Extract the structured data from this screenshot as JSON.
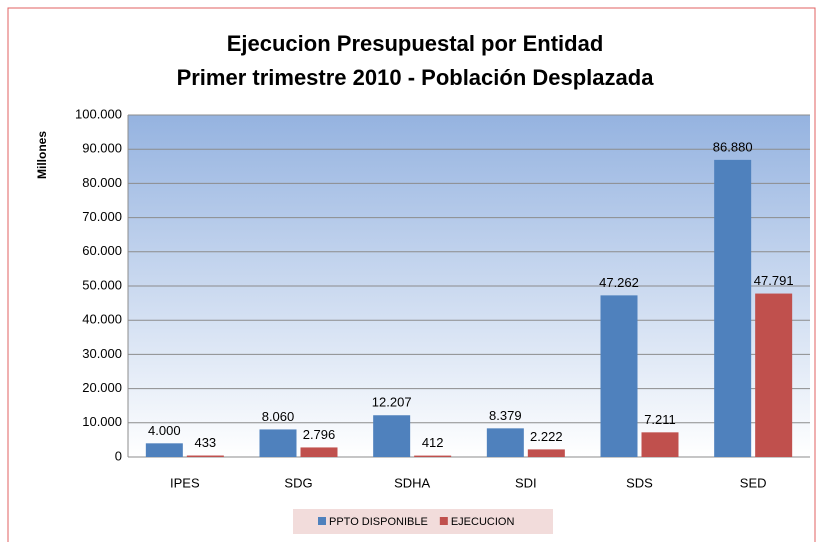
{
  "chart_data": {
    "type": "bar",
    "title": "Ejecucion Presupuestal por Entidad",
    "subtitle": "Primer trimestre 2010 - Población Desplazada",
    "y_label": "Millones",
    "categories": [
      "IPES",
      "SDG",
      "SDHA",
      "SDI",
      "SDS",
      "SED"
    ],
    "series": [
      {
        "name": "PPTO DISPONIBLE",
        "color": "#4f81bd",
        "values": [
          4000,
          8060,
          12207,
          8379,
          47262,
          86880
        ],
        "value_labels": [
          "4.000",
          "8.060",
          "12.207",
          "8.379",
          "47.262",
          "86.880"
        ]
      },
      {
        "name": "EJECUCION",
        "color": "#c0504d",
        "values": [
          433,
          2796,
          412,
          2222,
          7211,
          47791
        ],
        "value_labels": [
          "433",
          "2.796",
          "412",
          "2.222",
          "7.211",
          "47.791"
        ]
      }
    ],
    "ylim": [
      0,
      100000
    ],
    "yticks": [
      0,
      {
        "value": 10000,
        "label": "10.000"
      },
      {
        "value": 20000,
        "label": "20.000"
      },
      {
        "value": 30000,
        "label": "30.000"
      },
      {
        "value": 40000,
        "label": "40.000"
      },
      {
        "value": 50000,
        "label": "50.000"
      },
      {
        "value": 60000,
        "label": "60.000"
      },
      {
        "value": 70000,
        "label": "70.000"
      },
      {
        "value": 80000,
        "label": "80.000"
      },
      {
        "value": 90000,
        "label": "90.000"
      },
      {
        "value": 100000,
        "label": "100.000"
      }
    ],
    "grid": true,
    "legend": "bottom"
  }
}
